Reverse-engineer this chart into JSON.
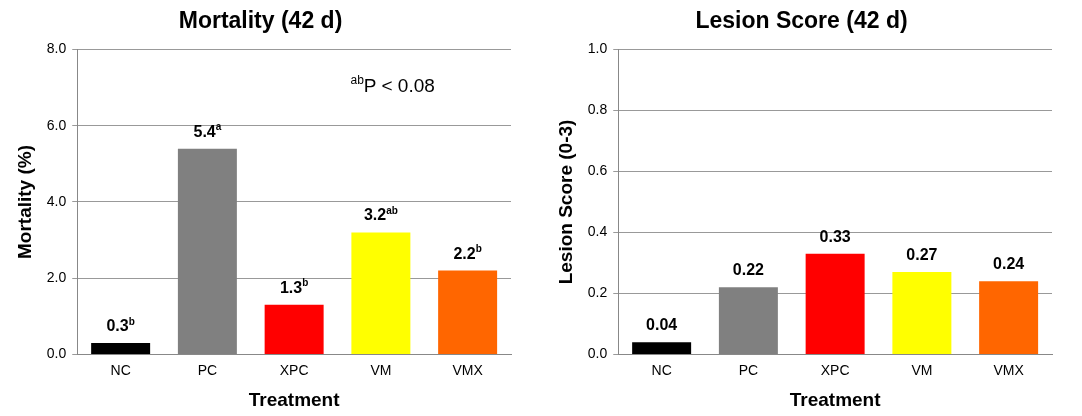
{
  "chart_data": [
    {
      "type": "bar",
      "title": "Mortality (42 d)",
      "xlabel": "Treatment",
      "ylabel": "Mortality (%)",
      "categories": [
        "NC",
        "PC",
        "XPC",
        "VM",
        "VMX"
      ],
      "values": [
        0.3,
        5.4,
        1.3,
        3.2,
        2.2
      ],
      "colors": [
        "#000000",
        "#808080",
        "#ff0000",
        "#ffff00",
        "#ff6600"
      ],
      "value_labels": [
        "0.3$^{b}$",
        "5.4$^{a}$",
        "1.3$^{b}$",
        "3.2$^{ab}$",
        "2.2$^{b}$"
      ],
      "ylim": [
        0,
        8
      ],
      "yticks": [
        {
          "value": 0,
          "label": "0.0"
        },
        {
          "value": 2,
          "label": "2.0"
        },
        {
          "value": 4,
          "label": "4.0"
        },
        {
          "value": 6,
          "label": "6.0"
        },
        {
          "value": 8,
          "label": "8.0"
        }
      ],
      "grid": "y",
      "annotations": [
        "$^{ab}$P < 0.08"
      ]
    },
    {
      "type": "bar",
      "title": "Lesion Score (42 d)",
      "xlabel": "Treatment",
      "ylabel": "Lesion Score (0-3)",
      "categories": [
        "NC",
        "PC",
        "XPC",
        "VM",
        "VMX"
      ],
      "values": [
        0.04,
        0.22,
        0.33,
        0.27,
        0.24
      ],
      "colors": [
        "#000000",
        "#808080",
        "#ff0000",
        "#ffff00",
        "#ff6600"
      ],
      "data_labels": true,
      "ylim": [
        0,
        1
      ],
      "yticks": [
        {
          "value": 0,
          "label": "0.0"
        },
        {
          "value": 0.2,
          "label": "0.2"
        },
        {
          "value": 0.4,
          "label": "0.4"
        },
        {
          "value": 0.6,
          "label": "0.6"
        },
        {
          "value": 0.8,
          "label": "0.8"
        },
        {
          "value": 1,
          "label": "1.0"
        }
      ],
      "grid": "y"
    }
  ]
}
